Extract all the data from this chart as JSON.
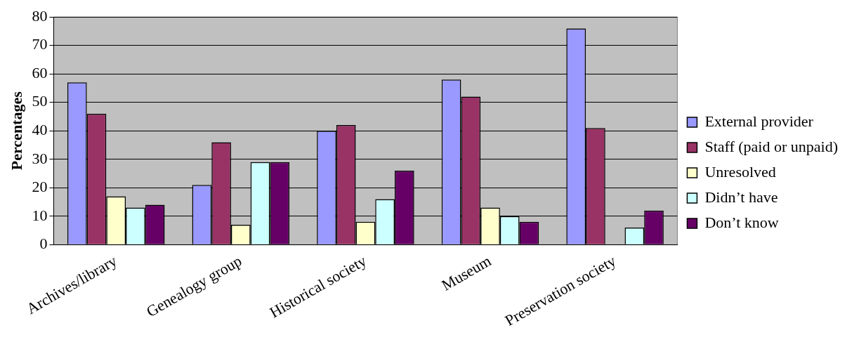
{
  "chart_data": {
    "type": "bar",
    "ylabel": "Percentages",
    "categories": [
      "Archives/library",
      "Genealogy group",
      "Historical society",
      "Museum",
      "Preservation society"
    ],
    "series": [
      {
        "name": "External provider",
        "color": "#9999ff",
        "values": [
          57,
          21,
          40,
          58,
          76
        ]
      },
      {
        "name": "Staff (paid or unpaid)",
        "color": "#993366",
        "values": [
          46,
          36,
          42,
          52,
          41
        ]
      },
      {
        "name": "Unresolved",
        "color": "#ffffcc",
        "values": [
          17,
          7,
          8,
          13,
          0
        ]
      },
      {
        "name": "Didn’t have",
        "color": "#ccffff",
        "values": [
          13,
          29,
          16,
          10,
          6
        ]
      },
      {
        "name": "Don’t know",
        "color": "#660066",
        "values": [
          14,
          29,
          26,
          8,
          12
        ]
      }
    ],
    "ylim": [
      0,
      80
    ],
    "yticks": [
      0,
      10,
      20,
      30,
      40,
      50,
      60,
      70,
      80
    ],
    "grid": "y",
    "legend": "right"
  }
}
